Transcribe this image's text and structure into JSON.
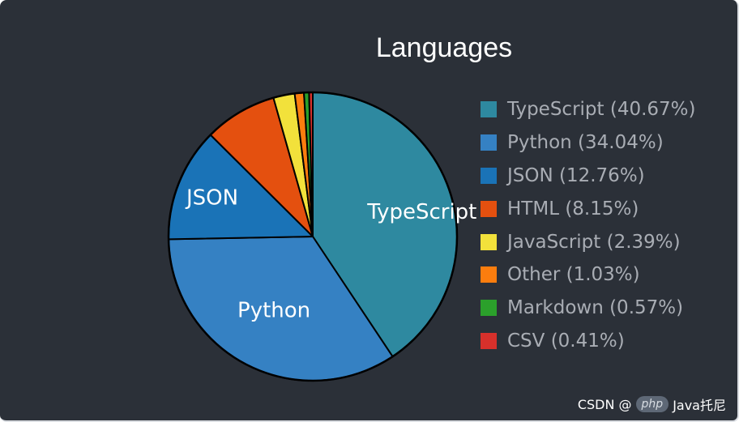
{
  "chart_data": {
    "type": "pie",
    "title": "Languages",
    "slices": [
      {
        "name": "TypeScript",
        "value": 40.67,
        "legend": "TypeScript (40.67%)",
        "label": "TypeScript",
        "color": "#2e89a0"
      },
      {
        "name": "Python",
        "value": 34.04,
        "legend": "Python (34.04%)",
        "label": "Python",
        "color": "#3581c3"
      },
      {
        "name": "JSON",
        "value": 12.76,
        "legend": "JSON (12.76%)",
        "label": "JSON",
        "color": "#1a73b7"
      },
      {
        "name": "HTML",
        "value": 8.15,
        "legend": "HTML (8.15%)",
        "label": "",
        "color": "#e4500f"
      },
      {
        "name": "JavaScript",
        "value": 2.39,
        "legend": "JavaScript (2.39%)",
        "label": "",
        "color": "#f2e13b"
      },
      {
        "name": "Other",
        "value": 1.03,
        "legend": "Other (1.03%)",
        "label": "",
        "color": "#fb7d0e"
      },
      {
        "name": "Markdown",
        "value": 0.57,
        "legend": "Markdown (0.57%)",
        "label": "",
        "color": "#2ba02b"
      },
      {
        "name": "CSV",
        "value": 0.41,
        "legend": "CSV (0.41%)",
        "label": "",
        "color": "#d7302b"
      }
    ],
    "start": "12 o'clock",
    "direction": "clockwise",
    "legend_position": "right"
  },
  "theme": {
    "background": "#2b3038",
    "title_color": "#ffffff",
    "legend_text_color": "#a9adb4",
    "slice_border_color": "#000000"
  },
  "watermark": {
    "prefix": "CSDN @",
    "logo": "php",
    "suffix": "Java托尼"
  }
}
